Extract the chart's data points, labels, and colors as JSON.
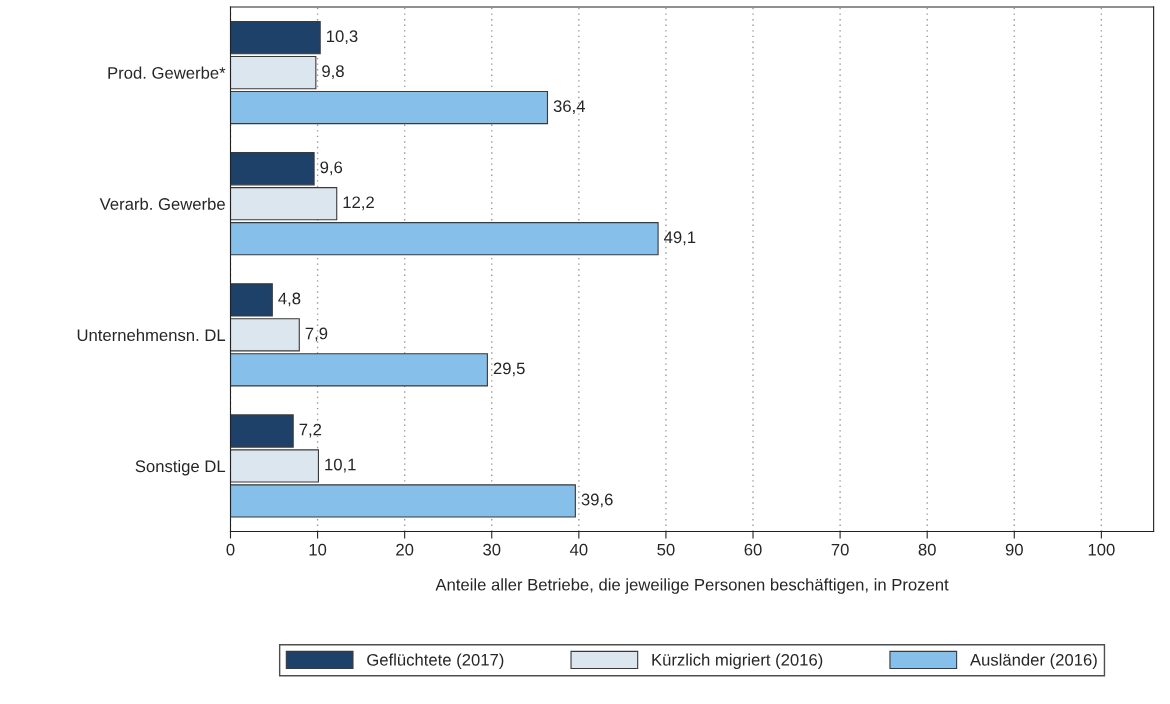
{
  "chart_data": {
    "type": "bar",
    "orientation": "horizontal",
    "categories": [
      "Prod. Gewerbe*",
      "Verarb. Gewerbe",
      "Unternehmensn. DL",
      "Sonstige DL"
    ],
    "series": [
      {
        "name": "Geflüchtete (2017)",
        "color": "#1d4168",
        "values": [
          10.3,
          9.6,
          4.8,
          7.2
        ],
        "value_labels": [
          "10,3",
          "9,6",
          "4,8",
          "7,2"
        ]
      },
      {
        "name": "Kürzlich migriert (2016)",
        "color": "#dce6ee",
        "values": [
          9.8,
          12.2,
          7.9,
          10.1
        ],
        "value_labels": [
          "9,8",
          "12,2",
          "7,9",
          "10,1"
        ]
      },
      {
        "name": "Ausländer (2016)",
        "color": "#86bfe9",
        "values": [
          36.4,
          49.1,
          29.5,
          39.6
        ],
        "value_labels": [
          "36,4",
          "49,1",
          "29,5",
          "39,6"
        ]
      }
    ],
    "xlabel": "Anteile aller Betriebe, die jeweilige Personen beschäftigen, in Prozent",
    "xlim": [
      0,
      106
    ],
    "xticks": [
      0,
      10,
      20,
      30,
      40,
      50,
      60,
      70,
      80,
      90,
      100
    ],
    "grid": "x",
    "legend": "bottom"
  }
}
